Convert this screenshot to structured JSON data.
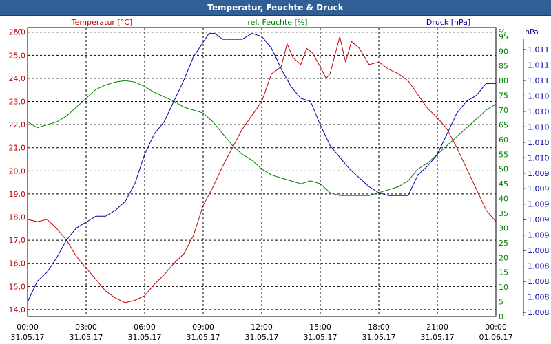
{
  "window": {
    "title": "Temperatur, Feuchte & Druck"
  },
  "colors": {
    "temperature": "#c00000",
    "humidity": "#008000",
    "pressure": "#0000a0",
    "grid": "#000000",
    "title_bar": "#2f5f95"
  },
  "chart_data": {
    "type": "line",
    "title": "Temperatur, Feuchte & Druck",
    "legend": "top",
    "grid": true,
    "x": {
      "ticks": [
        {
          "time": "00:00",
          "date": "31.05.17"
        },
        {
          "time": "03:00",
          "date": "31.05.17"
        },
        {
          "time": "06:00",
          "date": "31.05.17"
        },
        {
          "time": "09:00",
          "date": "31.05.17"
        },
        {
          "time": "12:00",
          "date": "31.05.17"
        },
        {
          "time": "15:00",
          "date": "31.05.17"
        },
        {
          "time": "18:00",
          "date": "31.05.17"
        },
        {
          "time": "21:00",
          "date": "31.05.17"
        },
        {
          "time": "00:00",
          "date": "01.06.17"
        }
      ],
      "range_hours": [
        0,
        24
      ]
    },
    "axes": {
      "left": {
        "unit": "°C",
        "min": 13.7,
        "max": 26.2,
        "ticks": [
          "26,0",
          "25,0",
          "24,0",
          "23,0",
          "22,0",
          "21,0",
          "20,0",
          "19,0",
          "18,0",
          "17,0",
          "16,0",
          "15,0",
          "14,0"
        ]
      },
      "right": {
        "unit": "%",
        "min": 0,
        "max": 98,
        "ticks": [
          "95",
          "90",
          "85",
          "80",
          "75",
          "70",
          "65",
          "60",
          "55",
          "50",
          "45",
          "40",
          "35",
          "30",
          "25",
          "20",
          "15",
          "10",
          "5",
          "0"
        ]
      },
      "pressure": {
        "unit": "hPa",
        "ticks": [
          "1.011",
          "1.011",
          "1.011",
          "1.010",
          "1.010",
          "1.010",
          "1.010",
          "1.010",
          "1.009",
          "1.009",
          "1.009",
          "1.009",
          "1.009",
          "1.008",
          "1.008",
          "1.008",
          "1.008",
          "1.008"
        ]
      }
    },
    "series": [
      {
        "name": "Temperatur [°C]",
        "axis": "left",
        "points": [
          [
            0,
            17.9
          ],
          [
            0.5,
            17.8
          ],
          [
            1,
            17.9
          ],
          [
            1.5,
            17.5
          ],
          [
            2,
            17.0
          ],
          [
            2.5,
            16.3
          ],
          [
            3,
            15.8
          ],
          [
            3.5,
            15.3
          ],
          [
            4,
            14.8
          ],
          [
            4.5,
            14.5
          ],
          [
            5,
            14.3
          ],
          [
            5.5,
            14.4
          ],
          [
            6,
            14.6
          ],
          [
            6.5,
            15.1
          ],
          [
            7,
            15.5
          ],
          [
            7.5,
            16.0
          ],
          [
            8,
            16.4
          ],
          [
            8.5,
            17.2
          ],
          [
            9,
            18.5
          ],
          [
            9.5,
            19.3
          ],
          [
            10,
            20.2
          ],
          [
            10.5,
            21.0
          ],
          [
            11,
            21.8
          ],
          [
            11.5,
            22.4
          ],
          [
            12,
            23.0
          ],
          [
            12.5,
            24.2
          ],
          [
            13,
            24.5
          ],
          [
            13.3,
            25.5
          ],
          [
            13.6,
            24.9
          ],
          [
            14,
            24.6
          ],
          [
            14.3,
            25.3
          ],
          [
            14.6,
            25.1
          ],
          [
            15,
            24.5
          ],
          [
            15.3,
            24.0
          ],
          [
            15.5,
            24.2
          ],
          [
            16,
            25.8
          ],
          [
            16.3,
            24.7
          ],
          [
            16.6,
            25.6
          ],
          [
            17,
            25.3
          ],
          [
            17.5,
            24.6
          ],
          [
            18,
            24.7
          ],
          [
            18.5,
            24.4
          ],
          [
            19,
            24.2
          ],
          [
            19.5,
            23.9
          ],
          [
            20,
            23.3
          ],
          [
            20.5,
            22.7
          ],
          [
            21,
            22.3
          ],
          [
            21.5,
            21.8
          ],
          [
            22,
            21.0
          ],
          [
            22.5,
            20.1
          ],
          [
            23,
            19.2
          ],
          [
            23.5,
            18.3
          ],
          [
            24,
            17.8
          ]
        ]
      },
      {
        "name": "rel. Feuchte [%]",
        "axis": "right",
        "points": [
          [
            0,
            66
          ],
          [
            0.5,
            64
          ],
          [
            1,
            65
          ],
          [
            1.5,
            66
          ],
          [
            2,
            68
          ],
          [
            2.5,
            71
          ],
          [
            3,
            74
          ],
          [
            3.5,
            77
          ],
          [
            4,
            78.5
          ],
          [
            4.5,
            79.5
          ],
          [
            5,
            80
          ],
          [
            5.5,
            79.5
          ],
          [
            6,
            78
          ],
          [
            6.5,
            76
          ],
          [
            7,
            74.5
          ],
          [
            7.5,
            73
          ],
          [
            8,
            71
          ],
          [
            8.5,
            70
          ],
          [
            9,
            69
          ],
          [
            9.5,
            66
          ],
          [
            10,
            62
          ],
          [
            10.5,
            58
          ],
          [
            11,
            55
          ],
          [
            11.5,
            53
          ],
          [
            12,
            50
          ],
          [
            12.5,
            48
          ],
          [
            13,
            47
          ],
          [
            13.5,
            46
          ],
          [
            14,
            45
          ],
          [
            14.5,
            46
          ],
          [
            15,
            45
          ],
          [
            15.5,
            42
          ],
          [
            16,
            41
          ],
          [
            16.5,
            41
          ],
          [
            17,
            41
          ],
          [
            17.5,
            41
          ],
          [
            18,
            42
          ],
          [
            18.5,
            43
          ],
          [
            19,
            44
          ],
          [
            19.5,
            46
          ],
          [
            20,
            50
          ],
          [
            20.5,
            52
          ],
          [
            21,
            55
          ],
          [
            21.5,
            58
          ],
          [
            22,
            61
          ],
          [
            22.5,
            64
          ],
          [
            23,
            67
          ],
          [
            23.5,
            70
          ],
          [
            24,
            72
          ]
        ]
      },
      {
        "name": "Druck [hPa]",
        "axis": "right",
        "points": [
          [
            0,
            5
          ],
          [
            0.5,
            12
          ],
          [
            1,
            15
          ],
          [
            1.5,
            20
          ],
          [
            2,
            26
          ],
          [
            2.5,
            30
          ],
          [
            3,
            32
          ],
          [
            3.5,
            34
          ],
          [
            4,
            34
          ],
          [
            4.5,
            36
          ],
          [
            5,
            39
          ],
          [
            5.5,
            45
          ],
          [
            6,
            55
          ],
          [
            6.5,
            62
          ],
          [
            7,
            66
          ],
          [
            7.5,
            73
          ],
          [
            8,
            80
          ],
          [
            8.5,
            88
          ],
          [
            9,
            93
          ],
          [
            9.3,
            96
          ],
          [
            9.6,
            96
          ],
          [
            10,
            94
          ],
          [
            11,
            94
          ],
          [
            11.5,
            96
          ],
          [
            12,
            95
          ],
          [
            12.5,
            91
          ],
          [
            13,
            84
          ],
          [
            13.5,
            78
          ],
          [
            14,
            74
          ],
          [
            14.5,
            73
          ],
          [
            15,
            65
          ],
          [
            15.5,
            58
          ],
          [
            16,
            54
          ],
          [
            16.5,
            50
          ],
          [
            17,
            47
          ],
          [
            17.5,
            44
          ],
          [
            18,
            42
          ],
          [
            18.5,
            41
          ],
          [
            19,
            41
          ],
          [
            19.5,
            41
          ],
          [
            20,
            48
          ],
          [
            20.5,
            51
          ],
          [
            21,
            55
          ],
          [
            21.5,
            62
          ],
          [
            22,
            69
          ],
          [
            22.5,
            73
          ],
          [
            23,
            75
          ],
          [
            23.5,
            79
          ],
          [
            24,
            79
          ]
        ]
      }
    ]
  }
}
